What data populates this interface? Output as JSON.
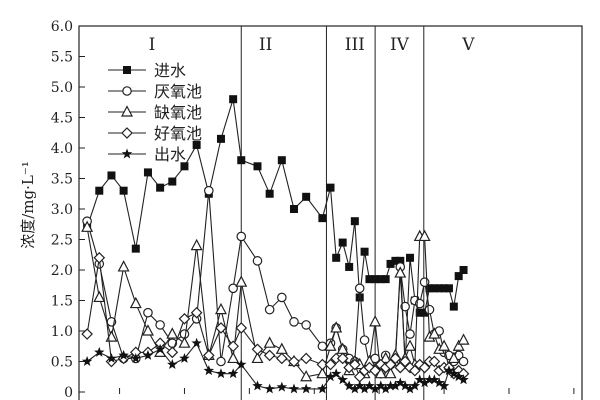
{
  "chart_data": {
    "type": "line",
    "ylabel": "浓度/mg·L⁻¹",
    "ylim": [
      0,
      6
    ],
    "yticks": [
      "0",
      "0.5",
      "1.0",
      "1.5",
      "2.0",
      "2.5",
      "3.0",
      "3.5",
      "4.0",
      "4.5",
      "5.0",
      "5.5",
      "6.0"
    ],
    "xlim": [
      0,
      62
    ],
    "periods": [
      {
        "label": "I",
        "x": 9
      },
      {
        "label": "II",
        "x": 23
      },
      {
        "label": "III",
        "x": 34
      },
      {
        "label": "IV",
        "x": 39.5
      },
      {
        "label": "V",
        "x": 48
      }
    ],
    "period_boundaries": [
      20,
      30.5,
      36.5,
      42.5
    ],
    "legend_position": "top-left",
    "series": [
      {
        "name": "进水",
        "marker": "square-filled",
        "points": [
          [
            1,
            2.7
          ],
          [
            2.5,
            3.3
          ],
          [
            4,
            3.55
          ],
          [
            5.5,
            3.3
          ],
          [
            7,
            2.35
          ],
          [
            8.5,
            3.6
          ],
          [
            10,
            3.35
          ],
          [
            11.5,
            3.45
          ],
          [
            13,
            3.7
          ],
          [
            14.5,
            4.05
          ],
          [
            16,
            3.25
          ],
          [
            17.5,
            4.15
          ],
          [
            19,
            4.8
          ],
          [
            20,
            3.8
          ],
          [
            22,
            3.7
          ],
          [
            23.5,
            3.25
          ],
          [
            25,
            3.8
          ],
          [
            26.5,
            3.0
          ],
          [
            28,
            3.2
          ],
          [
            30,
            2.85
          ],
          [
            31,
            3.35
          ],
          [
            31.7,
            2.2
          ],
          [
            32.5,
            2.45
          ],
          [
            33.3,
            2.05
          ],
          [
            34,
            2.8
          ],
          [
            34.6,
            1.55
          ],
          [
            35.2,
            2.3
          ],
          [
            35.8,
            1.85
          ],
          [
            36.5,
            1.85
          ],
          [
            37.2,
            1.85
          ],
          [
            37.8,
            1.85
          ],
          [
            38.4,
            2.1
          ],
          [
            39,
            2.15
          ],
          [
            39.6,
            2.15
          ],
          [
            40.2,
            0.45
          ],
          [
            40.8,
            2.2
          ],
          [
            41.4,
            1.5
          ],
          [
            42,
            1.3
          ],
          [
            42.6,
            1.3
          ],
          [
            43.2,
            1.7
          ],
          [
            43.8,
            1.7
          ],
          [
            44.4,
            1.7
          ],
          [
            45,
            1.7
          ],
          [
            45.6,
            1.7
          ],
          [
            46.2,
            1.4
          ],
          [
            46.8,
            1.9
          ],
          [
            47.4,
            2.0
          ]
        ]
      },
      {
        "name": "厌氧池",
        "marker": "circle-open",
        "points": [
          [
            1,
            2.8
          ],
          [
            2.5,
            2.1
          ],
          [
            4,
            1.15
          ],
          [
            5.5,
            0.55
          ],
          [
            7,
            0.55
          ],
          [
            8.5,
            1.3
          ],
          [
            10,
            1.1
          ],
          [
            11.5,
            0.8
          ],
          [
            13,
            0.95
          ],
          [
            14.5,
            1.2
          ],
          [
            16,
            3.3
          ],
          [
            17.5,
            0.5
          ],
          [
            19,
            1.7
          ],
          [
            20,
            2.55
          ],
          [
            22,
            2.15
          ],
          [
            23.5,
            1.35
          ],
          [
            25,
            1.55
          ],
          [
            26.5,
            1.15
          ],
          [
            28,
            1.1
          ],
          [
            30,
            0.75
          ],
          [
            31,
            0.8
          ],
          [
            31.7,
            1.05
          ],
          [
            32.5,
            0.7
          ],
          [
            33.3,
            0.55
          ],
          [
            34,
            0.5
          ],
          [
            34.6,
            1.7
          ],
          [
            35.2,
            0.85
          ],
          [
            35.8,
            0.45
          ],
          [
            36.5,
            0.55
          ],
          [
            37.2,
            0.3
          ],
          [
            37.8,
            0.6
          ],
          [
            38.4,
            0.45
          ],
          [
            39,
            0.5
          ],
          [
            39.6,
            2.05
          ],
          [
            40.2,
            1.4
          ],
          [
            40.8,
            0.95
          ],
          [
            41.4,
            1.5
          ],
          [
            42,
            1.45
          ],
          [
            42.6,
            1.8
          ],
          [
            43.2,
            1.35
          ],
          [
            43.8,
            0.95
          ],
          [
            44.4,
            1.0
          ],
          [
            45,
            0.65
          ],
          [
            45.6,
            0.6
          ],
          [
            46.2,
            0.5
          ],
          [
            46.8,
            0.6
          ],
          [
            47.4,
            0.5
          ]
        ]
      },
      {
        "name": "缺氧池",
        "marker": "triangle-open",
        "points": [
          [
            1,
            2.7
          ],
          [
            2.5,
            1.55
          ],
          [
            4,
            0.9
          ],
          [
            5.5,
            2.05
          ],
          [
            7,
            1.45
          ],
          [
            8.5,
            1.0
          ],
          [
            10,
            0.65
          ],
          [
            11.5,
            0.95
          ],
          [
            13,
            0.8
          ],
          [
            14.5,
            2.4
          ],
          [
            16,
            0.6
          ],
          [
            17.5,
            1.35
          ],
          [
            19,
            0.55
          ],
          [
            20,
            1.8
          ],
          [
            22,
            0.55
          ],
          [
            23.5,
            0.8
          ],
          [
            25,
            0.7
          ],
          [
            26.5,
            0.5
          ],
          [
            28,
            0.25
          ],
          [
            30,
            0.3
          ],
          [
            31,
            0.75
          ],
          [
            31.7,
            1.05
          ],
          [
            32.5,
            0.7
          ],
          [
            33.3,
            0.35
          ],
          [
            34,
            0.5
          ],
          [
            34.6,
            0.45
          ],
          [
            35.2,
            0.3
          ],
          [
            35.8,
            0.5
          ],
          [
            36.5,
            1.15
          ],
          [
            37.2,
            0.3
          ],
          [
            37.8,
            0.55
          ],
          [
            38.4,
            0.3
          ],
          [
            39,
            0.6
          ],
          [
            39.6,
            1.95
          ],
          [
            40.2,
            0.55
          ],
          [
            40.8,
            0.75
          ],
          [
            41.4,
            0.45
          ],
          [
            42,
            2.55
          ],
          [
            42.6,
            2.55
          ],
          [
            43.2,
            0.9
          ],
          [
            43.8,
            0.95
          ],
          [
            44.4,
            0.7
          ],
          [
            45,
            0.75
          ],
          [
            45.6,
            0.4
          ],
          [
            46.2,
            0.55
          ],
          [
            46.8,
            0.75
          ],
          [
            47.4,
            0.85
          ]
        ]
      },
      {
        "name": "好氧池",
        "marker": "diamond-open",
        "points": [
          [
            1,
            0.95
          ],
          [
            2.5,
            2.2
          ],
          [
            4,
            0.5
          ],
          [
            5.5,
            0.55
          ],
          [
            7,
            0.65
          ],
          [
            8.5,
            0.65
          ],
          [
            10,
            0.8
          ],
          [
            11.5,
            0.65
          ],
          [
            13,
            1.2
          ],
          [
            14.5,
            1.3
          ],
          [
            16,
            0.6
          ],
          [
            17.5,
            1.05
          ],
          [
            19,
            0.75
          ],
          [
            20,
            1.05
          ],
          [
            22,
            0.7
          ],
          [
            23.5,
            0.6
          ],
          [
            25,
            0.55
          ],
          [
            26.5,
            0.5
          ],
          [
            28,
            0.55
          ],
          [
            30,
            0.45
          ],
          [
            31,
            0.45
          ],
          [
            31.7,
            0.55
          ],
          [
            32.5,
            0.55
          ],
          [
            33.3,
            0.4
          ],
          [
            34,
            0.45
          ],
          [
            34.6,
            0.25
          ],
          [
            35.2,
            0.35
          ],
          [
            35.8,
            0.4
          ],
          [
            36.5,
            0.35
          ],
          [
            37.2,
            0.45
          ],
          [
            37.8,
            0.4
          ],
          [
            38.4,
            0.45
          ],
          [
            39,
            0.55
          ],
          [
            39.6,
            0.4
          ],
          [
            40.2,
            0.5
          ],
          [
            40.8,
            0.4
          ],
          [
            41.4,
            0.35
          ],
          [
            42,
            0.45
          ],
          [
            42.6,
            0.4
          ],
          [
            43.2,
            0.5
          ],
          [
            43.8,
            0.5
          ],
          [
            44.4,
            0.35
          ],
          [
            45,
            0.4
          ],
          [
            45.6,
            0.4
          ],
          [
            46.2,
            0.3
          ],
          [
            46.8,
            0.35
          ],
          [
            47.4,
            0.3
          ]
        ]
      },
      {
        "name": "出水",
        "marker": "star-filled",
        "points": [
          [
            1,
            0.5
          ],
          [
            2.5,
            0.65
          ],
          [
            4,
            0.55
          ],
          [
            5.5,
            0.6
          ],
          [
            7,
            0.55
          ],
          [
            8.5,
            0.6
          ],
          [
            10,
            0.7
          ],
          [
            11.5,
            0.45
          ],
          [
            13,
            0.55
          ],
          [
            14.5,
            0.8
          ],
          [
            16,
            0.35
          ],
          [
            17.5,
            0.3
          ],
          [
            19,
            0.3
          ],
          [
            20,
            0.45
          ],
          [
            22,
            0.1
          ],
          [
            23.5,
            0.05
          ],
          [
            25,
            0.08
          ],
          [
            26.5,
            0.05
          ],
          [
            28,
            0.05
          ],
          [
            30,
            0.05
          ],
          [
            31,
            0.25
          ],
          [
            31.7,
            0.3
          ],
          [
            32.5,
            0.2
          ],
          [
            33.3,
            0.1
          ],
          [
            34,
            0.05
          ],
          [
            34.6,
            0.1
          ],
          [
            35.2,
            0.05
          ],
          [
            35.8,
            0.1
          ],
          [
            36.5,
            0.05
          ],
          [
            37.2,
            0.1
          ],
          [
            37.8,
            0.05
          ],
          [
            38.4,
            0.1
          ],
          [
            39,
            0.1
          ],
          [
            39.6,
            0.15
          ],
          [
            40.2,
            0.1
          ],
          [
            40.8,
            0.05
          ],
          [
            41.4,
            0.1
          ],
          [
            42,
            0.2
          ],
          [
            42.6,
            0.15
          ],
          [
            43.2,
            0.2
          ],
          [
            43.8,
            0.2
          ],
          [
            44.4,
            0.15
          ],
          [
            45,
            0.1
          ],
          [
            45.6,
            0.35
          ],
          [
            46.2,
            0.3
          ],
          [
            46.8,
            0.25
          ],
          [
            47.4,
            0.2
          ]
        ]
      }
    ]
  }
}
